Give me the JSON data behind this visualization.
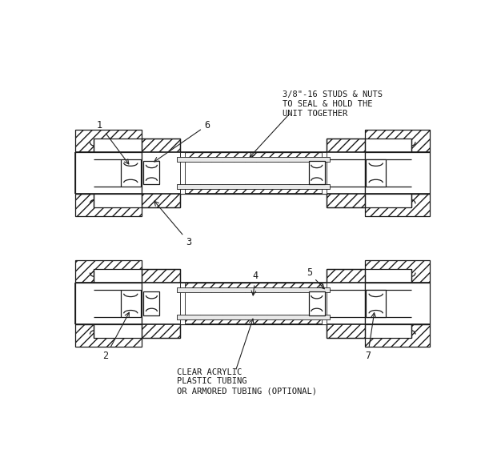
{
  "bg_color": "#ffffff",
  "line_color": "#1a1a1a",
  "fig_width": 6.16,
  "fig_height": 5.92,
  "dpi": 100,
  "note1_text": "3/8\"-16 STUDS & NUTS\nTO SEAL & HOLD THE\nUNIT TOGETHER",
  "note2_text": "CLEAR ACRYLIC\nPLASTIC TUBING\nOR ARMORED TUBING (OPTIONAL)"
}
